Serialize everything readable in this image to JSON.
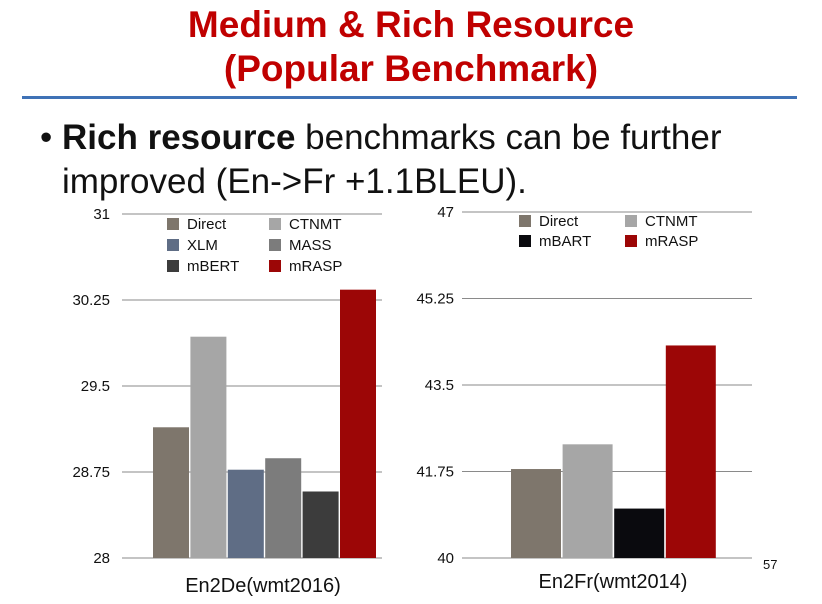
{
  "slide": {
    "title_line1": "Medium & Rich Resource",
    "title_line2": "(Popular Benchmark)",
    "bullet_bold": "Rich resource",
    "bullet_rest": " benchmarks can be further improved (En->Fr +1.1BLEU).",
    "page_number": "57"
  },
  "chart_data": [
    {
      "type": "bar",
      "xlabel": "En2De(wmt2016)",
      "ylim": [
        28,
        31
      ],
      "yticks": [
        "31",
        "30.25",
        "29.5",
        "28.75",
        "28"
      ],
      "series": [
        {
          "name": "Direct",
          "value": 29.14,
          "color": "#7e766c"
        },
        {
          "name": "CTNMT",
          "value": 29.93,
          "color": "#a6a6a6"
        },
        {
          "name": "XLM",
          "value": 28.77,
          "color": "#5f6d85"
        },
        {
          "name": "MASS",
          "value": 28.87,
          "color": "#7c7c7c"
        },
        {
          "name": "mBERT",
          "value": 28.58,
          "color": "#3c3c3c"
        },
        {
          "name": "mRASP",
          "value": 30.34,
          "color": "#9c0606"
        }
      ],
      "legend_order": [
        "Direct",
        "CTNMT",
        "XLM",
        "MASS",
        "mBERT",
        "mRASP"
      ],
      "grid": true
    },
    {
      "type": "bar",
      "xlabel": "En2Fr(wmt2014)",
      "ylim": [
        40,
        47
      ],
      "yticks": [
        "47",
        "45.25",
        "43.5",
        "41.75",
        "40"
      ],
      "series": [
        {
          "name": "Direct",
          "value": 41.8,
          "color": "#7e766c"
        },
        {
          "name": "CTNMT",
          "value": 42.3,
          "color": "#a6a6a6"
        },
        {
          "name": "mBART",
          "value": 41.0,
          "color": "#0a0a0e"
        },
        {
          "name": "mRASP",
          "value": 44.3,
          "color": "#9c0606"
        }
      ],
      "legend_order": [
        "Direct",
        "CTNMT",
        "mBART",
        "mRASP"
      ],
      "grid": true
    }
  ]
}
